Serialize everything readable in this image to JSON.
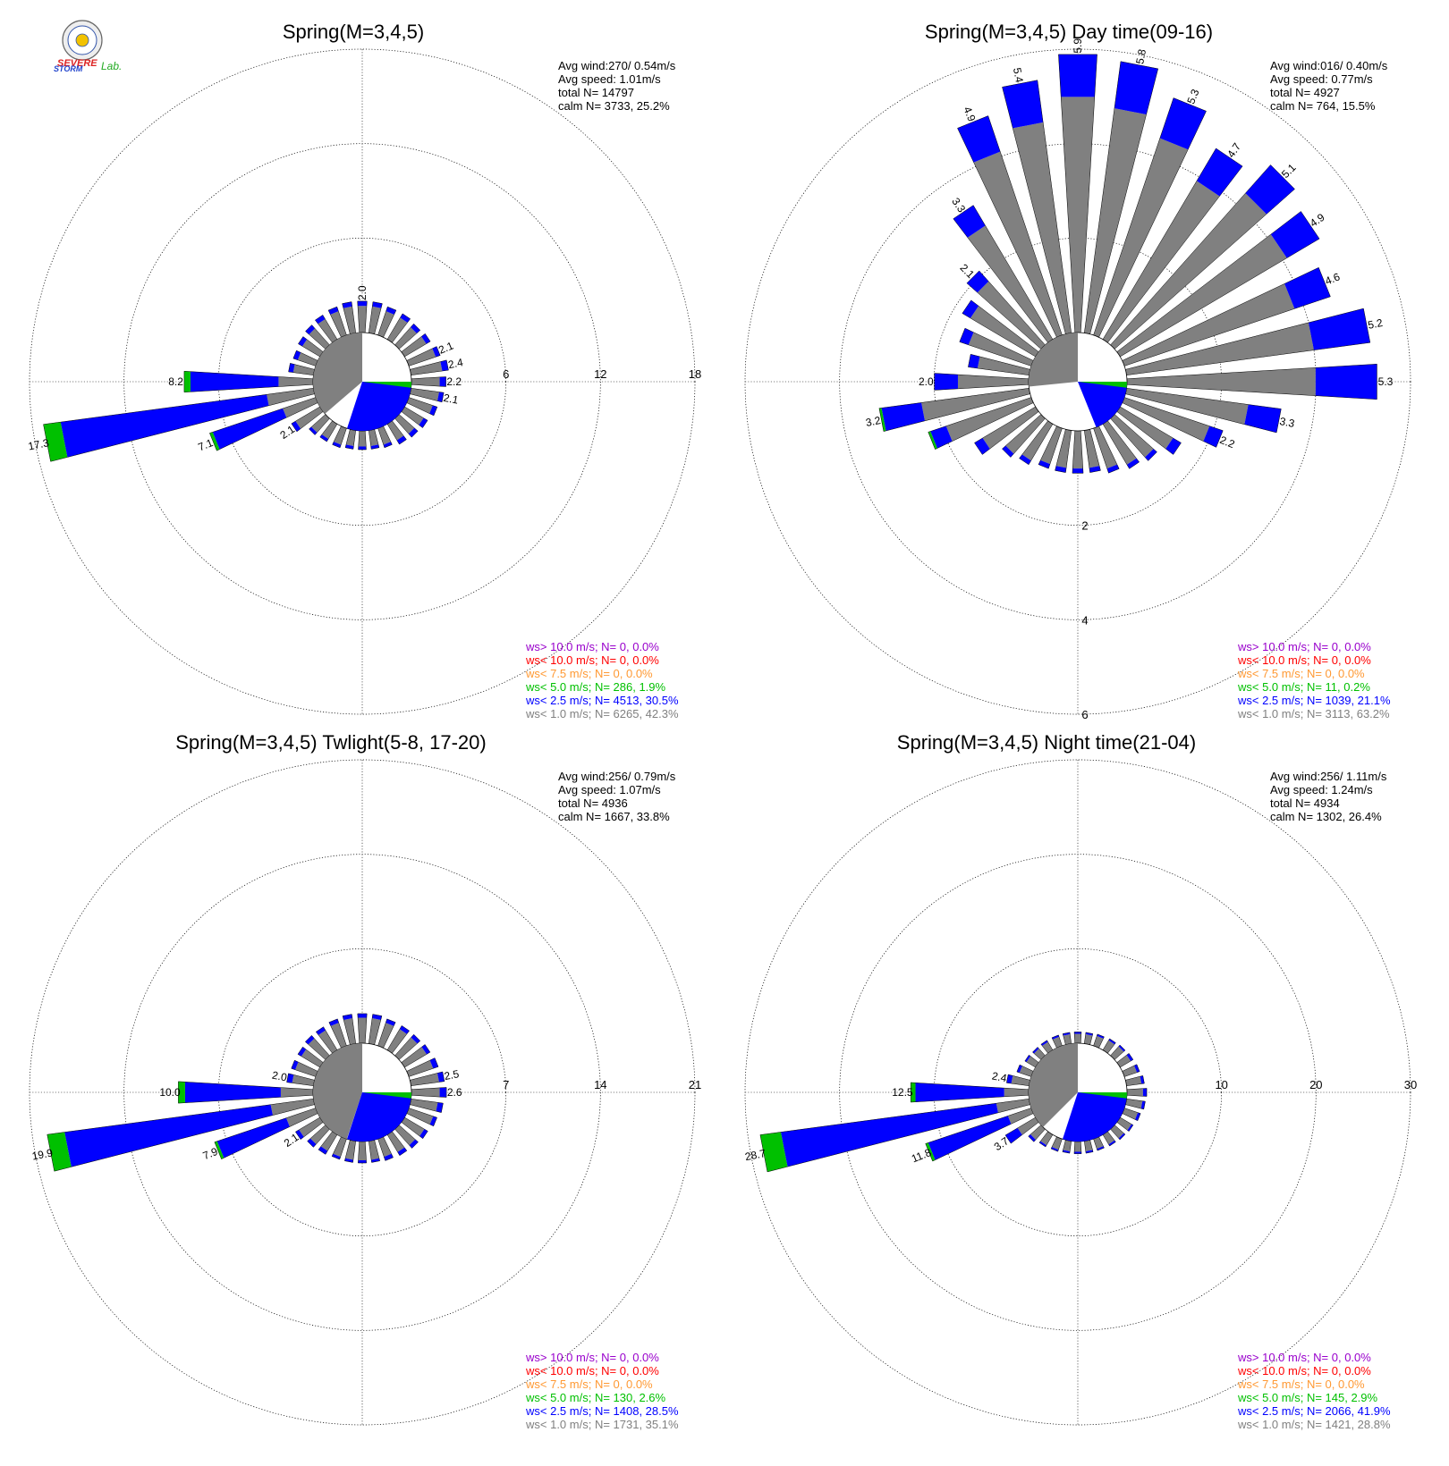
{
  "colors": {
    "calm": "#808080",
    "lt1": "#808080",
    "lt25": "#0000ff",
    "lt5": "#00c000",
    "lt75": "#ff9933",
    "lt10": "#ff0000",
    "gt10": "#9900cc"
  },
  "logo": {
    "text_line1": "SEVERE",
    "text_line2": "STORM",
    "text_lab": "Lab."
  },
  "chart_data": [
    {
      "type": "windrose",
      "title": "Spring(M=3,4,5)",
      "stats": [
        "Avg wind:270/ 0.54m/s",
        "Avg speed: 1.01m/s",
        "total N=      14797",
        "calm N=   3733,  25.2%"
      ],
      "calm_pct": 25.2,
      "mean_dir": 270,
      "ticks": [
        "6",
        "12",
        "18"
      ],
      "rmax": 18,
      "tick_axis": "east",
      "bars": [
        {
          "dir": 0,
          "total": 2.0,
          "label": "2.0",
          "gray": 1.7
        },
        {
          "dir": 11,
          "total": 2.0,
          "gray": 1.7
        },
        {
          "dir": 22,
          "total": 1.9,
          "gray": 1.6
        },
        {
          "dir": 34,
          "total": 1.9,
          "gray": 1.6
        },
        {
          "dir": 45,
          "total": 1.8,
          "gray": 1.5
        },
        {
          "dir": 56,
          "total": 1.9,
          "gray": 1.6
        },
        {
          "dir": 68,
          "total": 2.1,
          "label": "2.1",
          "gray": 1.8
        },
        {
          "dir": 79,
          "total": 2.4,
          "label": "2.4",
          "gray": 2.0
        },
        {
          "dir": 90,
          "total": 2.2,
          "label": "2.2",
          "gray": 1.8
        },
        {
          "dir": 101,
          "total": 2.1,
          "label": "2.1",
          "gray": 1.8
        },
        {
          "dir": 112,
          "total": 1.9,
          "gray": 1.6
        },
        {
          "dir": 124,
          "total": 1.7,
          "gray": 1.4
        },
        {
          "dir": 135,
          "total": 1.6,
          "gray": 1.3
        },
        {
          "dir": 146,
          "total": 1.5,
          "gray": 1.2
        },
        {
          "dir": 158,
          "total": 1.3,
          "gray": 1.1
        },
        {
          "dir": 169,
          "total": 1.2,
          "gray": 1.0
        },
        {
          "dir": 180,
          "total": 1.2,
          "gray": 1.0
        },
        {
          "dir": 191,
          "total": 1.2,
          "gray": 1.0
        },
        {
          "dir": 202,
          "total": 1.3,
          "gray": 1.1
        },
        {
          "dir": 214,
          "total": 1.3,
          "gray": 1.1
        },
        {
          "dir": 225,
          "total": 1.4,
          "gray": 1.2
        },
        {
          "dir": 236,
          "total": 2.1,
          "label": "2.1",
          "gray": 1.8
        },
        {
          "dir": 248,
          "total": 7.1,
          "label": "7.1",
          "gray": 2.2,
          "green": 0.2
        },
        {
          "dir": 259,
          "total": 17.3,
          "label": "17.3",
          "gray": 3.0,
          "green": 1.1
        },
        {
          "dir": 270,
          "total": 8.2,
          "label": "8.2",
          "gray": 2.2,
          "green": 0.4
        },
        {
          "dir": 281,
          "total": 1.6,
          "gray": 1.3
        },
        {
          "dir": 292,
          "total": 1.5,
          "gray": 1.2
        },
        {
          "dir": 304,
          "total": 1.6,
          "gray": 1.3
        },
        {
          "dir": 315,
          "total": 1.7,
          "gray": 1.4
        },
        {
          "dir": 326,
          "total": 1.8,
          "gray": 1.5
        },
        {
          "dir": 338,
          "total": 1.9,
          "gray": 1.6
        },
        {
          "dir": 349,
          "total": 2.0,
          "gray": 1.7
        }
      ],
      "legend": [
        {
          "key": "gt10",
          "text": "ws> 10.0 m/s; N=     0,  0.0%"
        },
        {
          "key": "lt10",
          "text": "ws< 10.0 m/s; N=     0,  0.0%"
        },
        {
          "key": "lt75",
          "text": "ws<  7.5 m/s; N=     0,  0.0%"
        },
        {
          "key": "lt5",
          "text": "ws<  5.0 m/s; N=   286,  1.9%"
        },
        {
          "key": "lt25",
          "text": "ws<  2.5 m/s; N=  4513, 30.5%"
        },
        {
          "key": "lt1",
          "text": "ws<  1.0 m/s; N=  6265, 42.3%"
        }
      ]
    },
    {
      "type": "windrose",
      "title": "Spring(M=3,4,5) Day time(09-16)",
      "stats": [
        "Avg wind:016/ 0.40m/s",
        "Avg speed: 0.77m/s",
        "total N=        4927",
        "calm N=    764,  15.5%"
      ],
      "calm_pct": 15.5,
      "mean_dir": 16,
      "ticks": [
        "2",
        "4",
        "6"
      ],
      "rmax": 6,
      "tick_axis": "south",
      "bars": [
        {
          "dir": 0,
          "total": 5.9,
          "label": "5.9",
          "gray": 5.0
        },
        {
          "dir": 11,
          "total": 5.8,
          "label": "5.8",
          "gray": 4.8
        },
        {
          "dir": 22,
          "total": 5.3,
          "label": "5.3",
          "gray": 4.4
        },
        {
          "dir": 34,
          "total": 4.7,
          "label": "4.7",
          "gray": 3.9
        },
        {
          "dir": 45,
          "total": 5.1,
          "label": "5.1",
          "gray": 4.3
        },
        {
          "dir": 56,
          "total": 4.9,
          "label": "4.9",
          "gray": 4.1
        },
        {
          "dir": 68,
          "total": 4.6,
          "label": "4.6",
          "gray": 3.8
        },
        {
          "dir": 79,
          "total": 5.2,
          "label": "5.2",
          "gray": 4.0
        },
        {
          "dir": 90,
          "total": 5.3,
          "label": "5.3",
          "gray": 4.0
        },
        {
          "dir": 101,
          "total": 3.3,
          "label": "3.3",
          "gray": 2.6
        },
        {
          "dir": 112,
          "total": 2.2,
          "label": "2.2",
          "gray": 1.9
        },
        {
          "dir": 124,
          "total": 1.5,
          "gray": 1.3
        },
        {
          "dir": 135,
          "total": 1.2,
          "gray": 1.1
        },
        {
          "dir": 146,
          "total": 1.1,
          "gray": 1.0
        },
        {
          "dir": 158,
          "total": 1.0,
          "gray": 0.9
        },
        {
          "dir": 169,
          "total": 0.9,
          "gray": 0.8
        },
        {
          "dir": 180,
          "total": 0.9,
          "gray": 0.8
        },
        {
          "dir": 191,
          "total": 0.9,
          "gray": 0.8
        },
        {
          "dir": 202,
          "total": 0.9,
          "gray": 0.8
        },
        {
          "dir": 214,
          "total": 1.0,
          "gray": 0.9
        },
        {
          "dir": 225,
          "total": 1.1,
          "gray": 1.0
        },
        {
          "dir": 236,
          "total": 1.5,
          "gray": 1.3
        },
        {
          "dir": 248,
          "total": 2.3,
          "gray": 1.9,
          "green": 0.05
        },
        {
          "dir": 259,
          "total": 3.2,
          "label": "3.2",
          "gray": 2.3,
          "green": 0.05
        },
        {
          "dir": 270,
          "total": 2.0,
          "label": "2.0",
          "gray": 1.5
        },
        {
          "dir": 281,
          "total": 1.3,
          "gray": 1.1
        },
        {
          "dir": 292,
          "total": 1.6,
          "gray": 1.4
        },
        {
          "dir": 304,
          "total": 1.8,
          "gray": 1.6
        },
        {
          "dir": 315,
          "total": 2.1,
          "label": "2.1",
          "gray": 1.8
        },
        {
          "dir": 326,
          "total": 3.3,
          "label": "3.3",
          "gray": 2.8
        },
        {
          "dir": 338,
          "total": 4.9,
          "label": "4.9",
          "gray": 4.1
        },
        {
          "dir": 349,
          "total": 5.4,
          "label": "5.4",
          "gray": 4.5
        }
      ],
      "legend": [
        {
          "key": "gt10",
          "text": "ws> 10.0 m/s; N=     0,  0.0%"
        },
        {
          "key": "lt10",
          "text": "ws< 10.0 m/s; N=     0,  0.0%"
        },
        {
          "key": "lt75",
          "text": "ws<  7.5 m/s; N=     0,  0.0%"
        },
        {
          "key": "lt5",
          "text": "ws<  5.0 m/s; N=    11,  0.2%"
        },
        {
          "key": "lt25",
          "text": "ws<  2.5 m/s; N=  1039, 21.1%"
        },
        {
          "key": "lt1",
          "text": "ws<  1.0 m/s; N=  3113, 63.2%"
        }
      ]
    },
    {
      "type": "windrose",
      "title": "Spring(M=3,4,5) Twlight(5-8, 17-20)",
      "stats": [
        "Avg wind:256/ 0.79m/s",
        "Avg speed: 1.07m/s",
        "total N=        4936",
        "calm N=   1667,  33.8%"
      ],
      "calm_pct": 33.8,
      "mean_dir": 256,
      "ticks": [
        "7",
        "14",
        "21"
      ],
      "rmax": 21,
      "tick_axis": "east",
      "bars": [
        {
          "dir": 0,
          "total": 2.2,
          "gray": 1.9
        },
        {
          "dir": 11,
          "total": 2.2,
          "gray": 1.9
        },
        {
          "dir": 22,
          "total": 2.1,
          "gray": 1.8
        },
        {
          "dir": 34,
          "total": 2.1,
          "gray": 1.8
        },
        {
          "dir": 45,
          "total": 2.1,
          "gray": 1.8
        },
        {
          "dir": 56,
          "total": 2.2,
          "gray": 1.9
        },
        {
          "dir": 68,
          "total": 2.3,
          "gray": 1.9
        },
        {
          "dir": 79,
          "total": 2.5,
          "label": "2.5",
          "gray": 2.1
        },
        {
          "dir": 90,
          "total": 2.6,
          "label": "2.6",
          "gray": 2.1
        },
        {
          "dir": 101,
          "total": 2.4,
          "gray": 2.0
        },
        {
          "dir": 112,
          "total": 2.2,
          "gray": 1.9
        },
        {
          "dir": 124,
          "total": 2.0,
          "gray": 1.7
        },
        {
          "dir": 135,
          "total": 1.9,
          "gray": 1.6
        },
        {
          "dir": 146,
          "total": 1.8,
          "gray": 1.5
        },
        {
          "dir": 158,
          "total": 1.7,
          "gray": 1.4
        },
        {
          "dir": 169,
          "total": 1.6,
          "gray": 1.4
        },
        {
          "dir": 180,
          "total": 1.6,
          "gray": 1.4
        },
        {
          "dir": 191,
          "total": 1.6,
          "gray": 1.4
        },
        {
          "dir": 202,
          "total": 1.6,
          "gray": 1.4
        },
        {
          "dir": 214,
          "total": 1.7,
          "gray": 1.4
        },
        {
          "dir": 225,
          "total": 1.8,
          "gray": 1.5
        },
        {
          "dir": 236,
          "total": 2.1,
          "label": "2.1",
          "gray": 1.8
        },
        {
          "dir": 248,
          "total": 7.9,
          "label": "7.9",
          "gray": 2.3,
          "green": 0.2
        },
        {
          "dir": 259,
          "total": 19.9,
          "label": "19.9",
          "gray": 3.2,
          "green": 1.3
        },
        {
          "dir": 270,
          "total": 10.0,
          "label": "10.0",
          "gray": 2.4,
          "green": 0.5
        },
        {
          "dir": 281,
          "total": 2.0,
          "label": "2.0",
          "gray": 1.6
        },
        {
          "dir": 292,
          "total": 1.9,
          "gray": 1.6
        },
        {
          "dir": 304,
          "total": 1.9,
          "gray": 1.6
        },
        {
          "dir": 315,
          "total": 2.0,
          "gray": 1.7
        },
        {
          "dir": 326,
          "total": 2.0,
          "gray": 1.7
        },
        {
          "dir": 338,
          "total": 2.1,
          "gray": 1.8
        },
        {
          "dir": 349,
          "total": 2.2,
          "gray": 1.9
        }
      ],
      "legend": [
        {
          "key": "gt10",
          "text": "ws> 10.0 m/s; N=     0,  0.0%"
        },
        {
          "key": "lt10",
          "text": "ws< 10.0 m/s; N=     0,  0.0%"
        },
        {
          "key": "lt75",
          "text": "ws<  7.5 m/s; N=     0,  0.0%"
        },
        {
          "key": "lt5",
          "text": "ws<  5.0 m/s; N=   130,  2.6%"
        },
        {
          "key": "lt25",
          "text": "ws<  2.5 m/s; N=  1408, 28.5%"
        },
        {
          "key": "lt1",
          "text": "ws<  1.0 m/s; N=  1731, 35.1%"
        }
      ]
    },
    {
      "type": "windrose",
      "title": "Spring(M=3,4,5) Night time(21-04)",
      "stats": [
        "Avg wind:256/ 1.11m/s",
        "Avg speed: 1.24m/s",
        "total N=        4934",
        "calm N=   1302,  26.4%"
      ],
      "calm_pct": 26.4,
      "mean_dir": 256,
      "ticks": [
        "10",
        "20",
        "30"
      ],
      "rmax": 30,
      "tick_axis": "east",
      "bars": [
        {
          "dir": 0,
          "total": 1.2,
          "gray": 1.0
        },
        {
          "dir": 11,
          "total": 1.2,
          "gray": 1.0
        },
        {
          "dir": 22,
          "total": 1.3,
          "gray": 1.1
        },
        {
          "dir": 34,
          "total": 1.4,
          "gray": 1.2
        },
        {
          "dir": 45,
          "total": 1.5,
          "gray": 1.3
        },
        {
          "dir": 56,
          "total": 1.6,
          "gray": 1.3
        },
        {
          "dir": 68,
          "total": 1.7,
          "gray": 1.4
        },
        {
          "dir": 79,
          "total": 1.9,
          "gray": 1.6
        },
        {
          "dir": 90,
          "total": 2.1,
          "gray": 1.7
        },
        {
          "dir": 101,
          "total": 2.0,
          "gray": 1.7
        },
        {
          "dir": 112,
          "total": 1.8,
          "gray": 1.5
        },
        {
          "dir": 124,
          "total": 1.6,
          "gray": 1.4
        },
        {
          "dir": 135,
          "total": 1.5,
          "gray": 1.3
        },
        {
          "dir": 146,
          "total": 1.4,
          "gray": 1.2
        },
        {
          "dir": 158,
          "total": 1.3,
          "gray": 1.1
        },
        {
          "dir": 169,
          "total": 1.3,
          "gray": 1.1
        },
        {
          "dir": 180,
          "total": 1.3,
          "gray": 1.1
        },
        {
          "dir": 191,
          "total": 1.3,
          "gray": 1.1
        },
        {
          "dir": 202,
          "total": 1.4,
          "gray": 1.2
        },
        {
          "dir": 214,
          "total": 1.5,
          "gray": 1.3
        },
        {
          "dir": 225,
          "total": 1.8,
          "gray": 1.5
        },
        {
          "dir": 236,
          "total": 3.7,
          "label": "3.7",
          "gray": 2.2
        },
        {
          "dir": 248,
          "total": 11.8,
          "label": "11.8",
          "gray": 2.6,
          "green": 0.3
        },
        {
          "dir": 259,
          "total": 28.7,
          "label": "28.7",
          "gray": 3.5,
          "green": 2.2
        },
        {
          "dir": 270,
          "total": 12.5,
          "label": "12.5",
          "gray": 2.6,
          "green": 0.5
        },
        {
          "dir": 281,
          "total": 2.4,
          "label": "2.4",
          "gray": 1.9
        },
        {
          "dir": 292,
          "total": 1.6,
          "gray": 1.3
        },
        {
          "dir": 304,
          "total": 1.3,
          "gray": 1.1
        },
        {
          "dir": 315,
          "total": 1.2,
          "gray": 1.0
        },
        {
          "dir": 326,
          "total": 1.2,
          "gray": 1.0
        },
        {
          "dir": 338,
          "total": 1.2,
          "gray": 1.0
        },
        {
          "dir": 349,
          "total": 1.2,
          "gray": 1.0
        }
      ],
      "legend": [
        {
          "key": "gt10",
          "text": "ws> 10.0 m/s; N=     0,  0.0%"
        },
        {
          "key": "lt10",
          "text": "ws< 10.0 m/s; N=     0,  0.0%"
        },
        {
          "key": "lt75",
          "text": "ws<  7.5 m/s; N=     0,  0.0%"
        },
        {
          "key": "lt5",
          "text": "ws<  5.0 m/s; N=   145,  2.9%"
        },
        {
          "key": "lt25",
          "text": "ws<  2.5 m/s; N=  2066, 41.9%"
        },
        {
          "key": "lt1",
          "text": "ws<  1.0 m/s; N=  1421, 28.8%"
        }
      ]
    }
  ]
}
